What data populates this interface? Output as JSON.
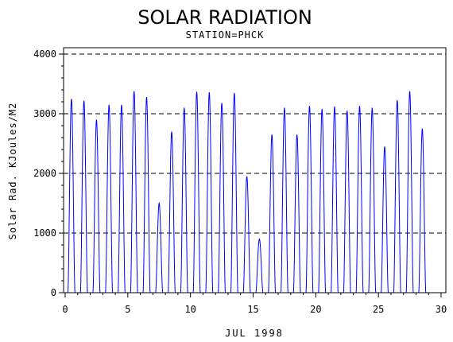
{
  "chart_data": {
    "type": "line",
    "title": "SOLAR RADIATION",
    "subtitle": "STATION=PHCK",
    "xlabel": "JUL 1998",
    "ylabel": "Solar Rad. KJoules/M2",
    "xlim": [
      0,
      30
    ],
    "ylim": [
      0,
      4000
    ],
    "x_ticks": [
      0,
      5,
      10,
      15,
      20,
      25,
      30
    ],
    "y_ticks": [
      0,
      1000,
      2000,
      3000,
      4000
    ],
    "grid": "horizontal dashed",
    "line_color": "#0000ff",
    "series": [
      {
        "daily_peaks": [
          {
            "day": 1,
            "peak": 3250
          },
          {
            "day": 2,
            "peak": 3220
          },
          {
            "day": 3,
            "peak": 2900
          },
          {
            "day": 4,
            "peak": 3150
          },
          {
            "day": 5,
            "peak": 3150
          },
          {
            "day": 6,
            "peak": 3380
          },
          {
            "day": 7,
            "peak": 3280
          },
          {
            "day": 8,
            "peak": 1500
          },
          {
            "day": 9,
            "peak": 2700
          },
          {
            "day": 10,
            "peak": 3100
          },
          {
            "day": 11,
            "peak": 3370
          },
          {
            "day": 12,
            "peak": 3360
          },
          {
            "day": 13,
            "peak": 3180
          },
          {
            "day": 14,
            "peak": 3350
          },
          {
            "day": 15,
            "peak": 1950
          },
          {
            "day": 16,
            "peak": 900
          },
          {
            "day": 17,
            "peak": 2650
          },
          {
            "day": 18,
            "peak": 3100
          },
          {
            "day": 19,
            "peak": 2650
          },
          {
            "day": 20,
            "peak": 3130
          },
          {
            "day": 21,
            "peak": 3080
          },
          {
            "day": 22,
            "peak": 3120
          },
          {
            "day": 23,
            "peak": 3050
          },
          {
            "day": 24,
            "peak": 3130
          },
          {
            "day": 25,
            "peak": 3100
          },
          {
            "day": 26,
            "peak": 2450
          },
          {
            "day": 27,
            "peak": 3230
          },
          {
            "day": 28,
            "peak": 3380
          },
          {
            "day": 29,
            "peak": 2750
          }
        ]
      }
    ]
  }
}
